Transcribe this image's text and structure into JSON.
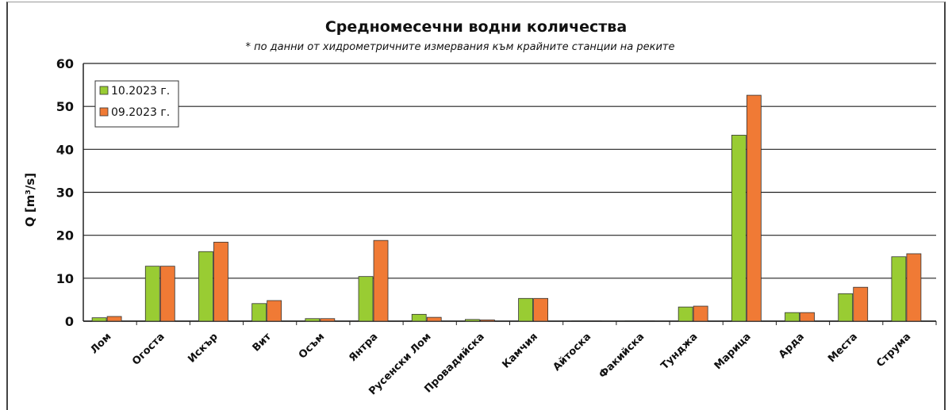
{
  "chart_data": {
    "type": "bar",
    "title": "Средномесечни водни количества",
    "subtitle": "* по данни от хидрометричните измервания към крайните станции на реките",
    "ylabel": "Q [m³/s]",
    "xlabel": "",
    "ylim": [
      0,
      60
    ],
    "yticks": [
      0,
      10,
      20,
      30,
      40,
      50,
      60
    ],
    "grid": true,
    "legend_position": "top-left",
    "categories": [
      "Лом",
      "Огоста",
      "Искър",
      "Вит",
      "Осъм",
      "Янтра",
      "Русенски Лом",
      "Провадийска",
      "Камчия",
      "Айтоска",
      "Факийска",
      "Тунджа",
      "Марица",
      "Арда",
      "Места",
      "Струма"
    ],
    "series": [
      {
        "name": "10.2023 г.",
        "color": "#99cc33",
        "values": [
          0.8,
          12.8,
          16.2,
          4.1,
          0.6,
          10.4,
          1.6,
          0.4,
          5.3,
          0.1,
          0.1,
          3.3,
          43.3,
          2.0,
          6.4,
          15.0
        ]
      },
      {
        "name": "09.2023 г.",
        "color": "#f07a35",
        "values": [
          1.1,
          12.8,
          18.4,
          4.8,
          0.6,
          18.8,
          0.9,
          0.3,
          5.3,
          0.1,
          0.1,
          3.5,
          52.6,
          2.0,
          7.9,
          15.7
        ]
      }
    ]
  }
}
